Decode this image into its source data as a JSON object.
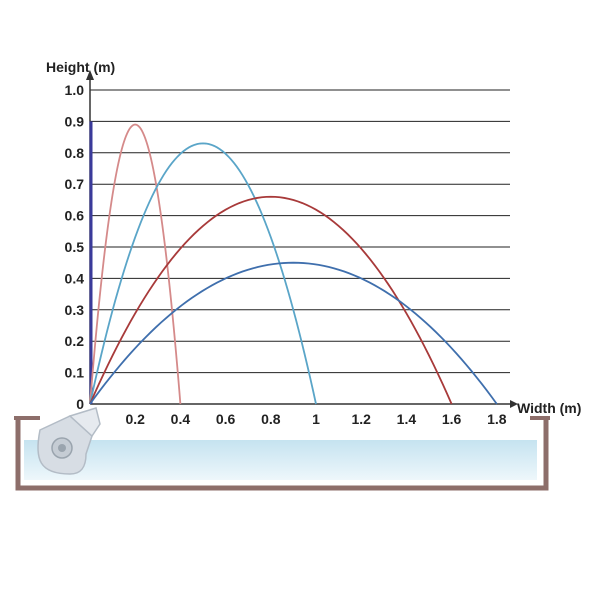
{
  "chart_data": {
    "type": "line",
    "title": "",
    "xlabel": "Width (m)",
    "ylabel": "Height (m)",
    "xlim": [
      0,
      1.8
    ],
    "ylim": [
      0,
      1.0
    ],
    "x_ticks": [
      "0.2",
      "0.4",
      "0.6",
      "0.8",
      "1",
      "1.2",
      "1.4",
      "1.6",
      "1.8"
    ],
    "y_ticks": [
      "0",
      "0.1",
      "0.2",
      "0.3",
      "0.4",
      "0.5",
      "0.6",
      "0.7",
      "0.8",
      "0.9",
      "1.0"
    ],
    "grid": "horizontal",
    "series": [
      {
        "range": 0.4,
        "peak_x": 0.2,
        "peak_y": 0.89,
        "color": "#d58a8a"
      },
      {
        "range": 1.0,
        "peak_x": 0.5,
        "peak_y": 0.83,
        "color": "#5aa5c8"
      },
      {
        "range": 1.6,
        "peak_x": 0.8,
        "peak_y": 0.66,
        "color": "#a83a3a"
      },
      {
        "range": 1.8,
        "peak_x": 0.9,
        "peak_y": 0.45,
        "color": "#3f6fad"
      }
    ]
  },
  "colors": {
    "grid": "#222222",
    "axis": "#333333",
    "y_axis_accent": "#3a3a9a",
    "pool_wall": "#8d6e6a",
    "water_top": "#c5e3f0",
    "water_bottom": "#eef7fb",
    "fountain_body": "#d7dde4"
  },
  "icons": {
    "fountain": "fountain-nozzle-icon"
  }
}
